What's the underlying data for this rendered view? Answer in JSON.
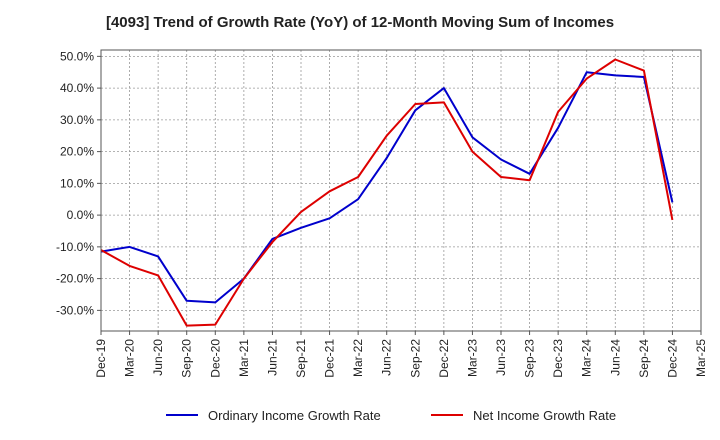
{
  "title": "[4093]  Trend of Growth Rate (YoY) of 12-Month Moving Sum of Incomes",
  "chart_data": {
    "type": "line",
    "title": "[4093]  Trend of Growth Rate (YoY) of 12-Month Moving Sum of Incomes",
    "xlabel": "",
    "ylabel": "",
    "x_tick_labels": [
      "Dec-19",
      "Mar-20",
      "Jun-20",
      "Sep-20",
      "Dec-20",
      "Mar-21",
      "Jun-21",
      "Sep-21",
      "Dec-21",
      "Mar-22",
      "Jun-22",
      "Sep-22",
      "Dec-22",
      "Mar-23",
      "Jun-23",
      "Sep-23",
      "Dec-23",
      "Mar-24",
      "Jun-24",
      "Sep-24",
      "Dec-24",
      "Mar-25"
    ],
    "y_ticks": [
      50,
      40,
      30,
      20,
      10,
      0,
      -10,
      -20,
      -30
    ],
    "y_tick_labels": [
      "50.0%",
      "40.0%",
      "30.0%",
      "20.0%",
      "10.0%",
      "0.0%",
      "-10.0%",
      "-20.0%",
      "-30.0%"
    ],
    "ylim": [
      -36.5,
      52
    ],
    "grid": true,
    "legend_position": "bottom",
    "series": [
      {
        "name": "Ordinary Income Growth Rate",
        "color": "#0000cc",
        "values": [
          -11.5,
          -10.0,
          -13.0,
          -27.0,
          -27.5,
          -20.0,
          -7.5,
          -4.0,
          -1.0,
          5.0,
          18.0,
          33.0,
          40.0,
          24.5,
          17.5,
          13.0,
          27.5,
          45.0,
          44.0,
          43.5,
          4.0
        ]
      },
      {
        "name": "Net Income Growth Rate",
        "color": "#dd0000",
        "values": [
          -11.0,
          -16.0,
          -19.0,
          -34.8,
          -34.5,
          -20.0,
          -8.5,
          1.0,
          7.5,
          12.0,
          25.0,
          35.0,
          35.5,
          20.0,
          12.0,
          11.0,
          32.5,
          43.0,
          49.0,
          45.5,
          -1.5
        ]
      }
    ]
  }
}
